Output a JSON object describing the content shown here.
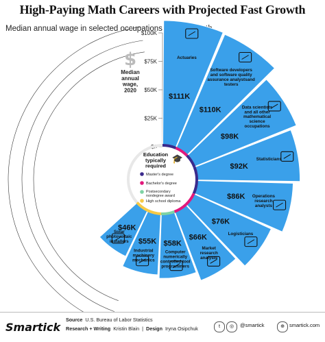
{
  "header": {
    "title": "High-Paying Math Careers with Projected Fast Growth",
    "subtitle": "Median annual wage in selected occupations that use math"
  },
  "axis": {
    "title_lines": [
      "Median",
      "annual",
      "wage,",
      "2020"
    ],
    "ticks": [
      "$100K",
      "$75K",
      "$50K",
      "$25K",
      "$0"
    ],
    "icon": "dollar-sign-icon"
  },
  "center": {
    "title_lines": [
      "Education",
      "typically",
      "required"
    ],
    "icon": "graduation-cap-icon"
  },
  "legend": [
    {
      "label": "Master's degree",
      "color": "#3b2a8c"
    },
    {
      "label": "Bachelor's degree",
      "color": "#e2187b"
    },
    {
      "label_lines": [
        "Postsecondary",
        "nondegree award"
      ],
      "color": "#7ed3a4"
    },
    {
      "label": "High school diploma",
      "color": "#f6c945"
    }
  ],
  "chart_data": {
    "type": "radial-bar",
    "ylabel": "Median annual wage, 2020",
    "ylim": [
      0,
      100000
    ],
    "categories": [
      "Actuaries",
      "Software developers and software quality assurance analysts and testers",
      "Data scientists and all other mathematical science occupations",
      "Statisticians",
      "Operations research analysts",
      "Logisticians",
      "Market research analysts",
      "Computer numerically controlled tool programmers",
      "Industrial machinery mechanics",
      "Solar photovoltaic installers"
    ],
    "values": [
      111000,
      110000,
      98000,
      92000,
      86000,
      76000,
      66000,
      58000,
      55000,
      46000
    ],
    "value_labels": [
      "$111K",
      "$110K",
      "$98K",
      "$92K",
      "$86K",
      "$76K",
      "$66K",
      "$58K",
      "$55K",
      "$46K"
    ],
    "display_labels": [
      [
        "Actuaries"
      ],
      [
        "Software developers",
        "and software quality",
        "assurance analystsand",
        "testers"
      ],
      [
        "Data scientists",
        "and all other",
        "mathematical",
        "science",
        "occupations"
      ],
      [
        "Statisticians"
      ],
      [
        "Operations",
        "research",
        "analysts"
      ],
      [
        "Logisticians"
      ],
      [
        "Market",
        "research",
        "analysts"
      ],
      [
        "Computer",
        "numerically",
        "controlled tool",
        "programmers"
      ],
      [
        "Industrial",
        "machinery",
        "mechanics"
      ],
      [
        "Solar",
        "photovoltaic",
        "installers"
      ]
    ],
    "education": [
      "master",
      "bachelor",
      "master",
      "master",
      "master",
      "bachelor",
      "bachelor",
      "postsecondary",
      "highschool",
      "highschool"
    ],
    "icons": [
      "monitor-chart-icon",
      "developer-icon",
      "atom-icon",
      "bar-chart-icon",
      "laptop-analytics-icon",
      "truck-globe-icon",
      "market-chart-icon",
      "cnc-machine-icon",
      "machinery-icon",
      "solar-panel-icon"
    ],
    "bar_color": "#3aa0ea",
    "grid": true
  },
  "footer": {
    "brand": "Smartick",
    "source_label": "Source",
    "source": "U.S. Bureau of Labor Statistics",
    "research_label": "Research + Writing",
    "research": "Kristin Blain",
    "design_label": "Design",
    "design": "Iryna Osipchuk",
    "social_handle": "@smartick",
    "website": "smartick.com"
  }
}
